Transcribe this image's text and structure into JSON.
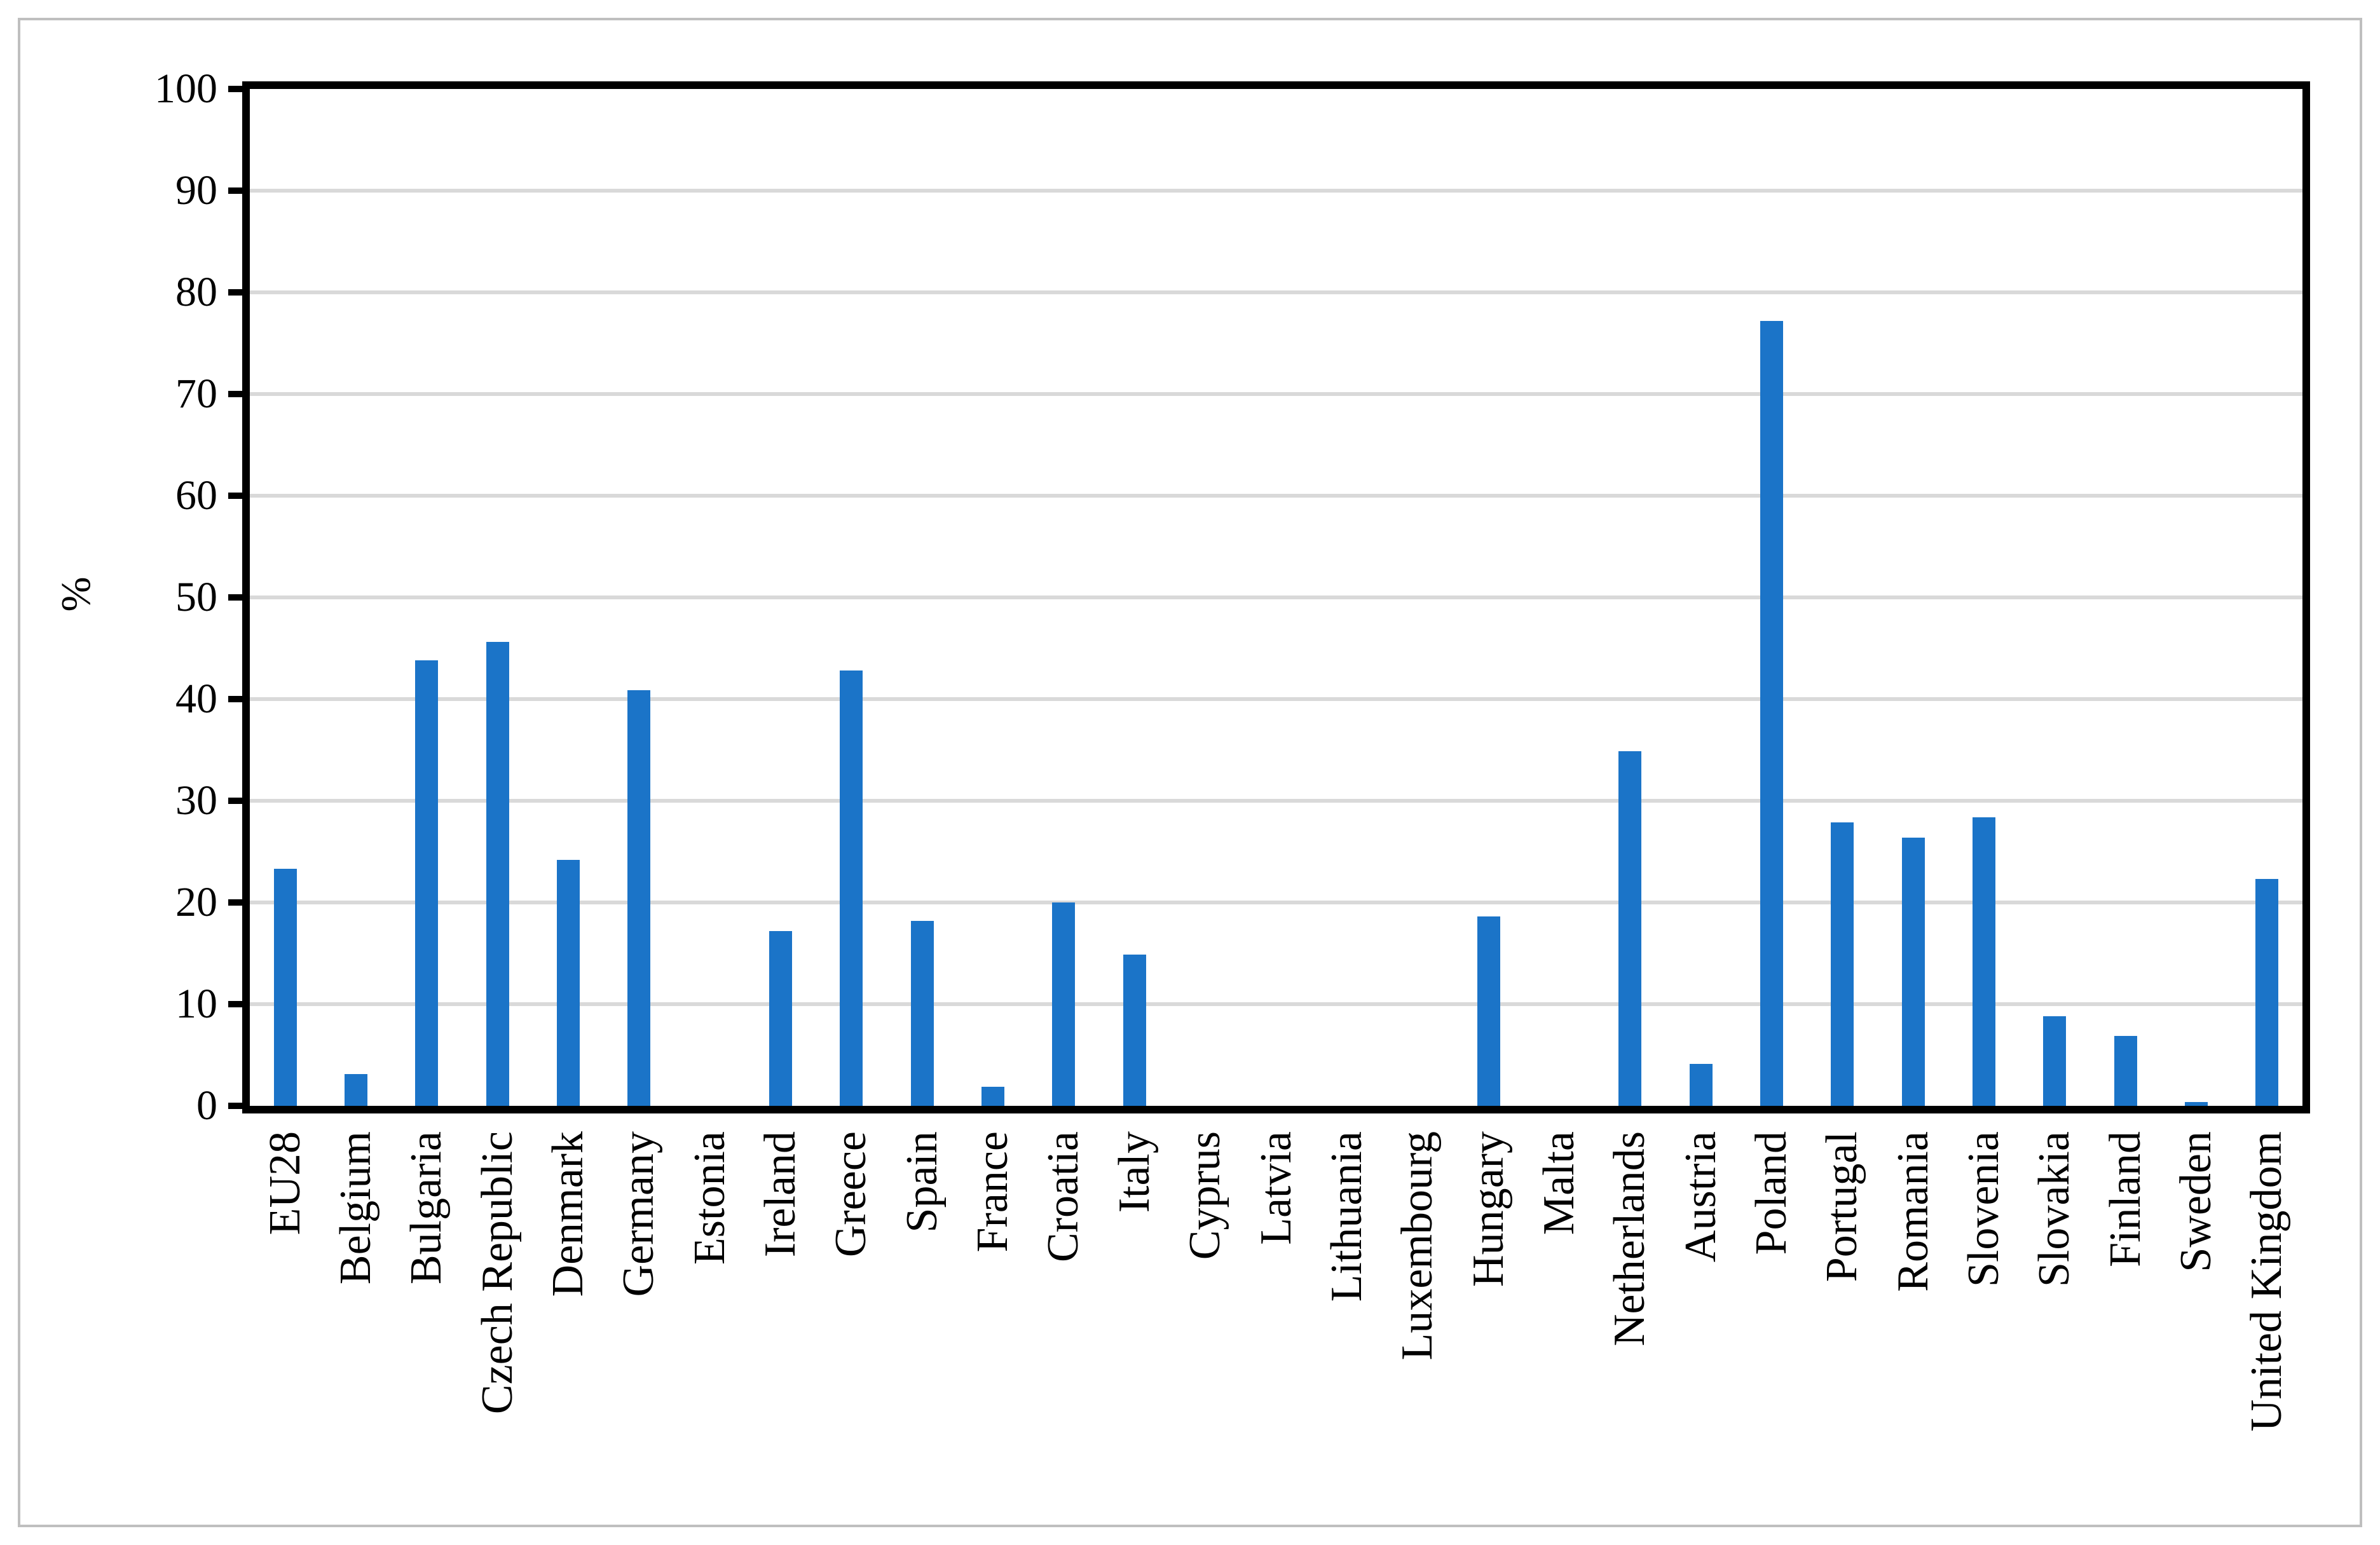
{
  "figure": {
    "background_color": "#ffffff",
    "frame_border_color": "#bfbfbf",
    "axis_color": "#000000",
    "gridline_color": "#d9d9d9",
    "text_color": "#000000"
  },
  "chart_data": {
    "type": "bar",
    "title": "",
    "xlabel": "",
    "ylabel": "%",
    "ylim": [
      0,
      100
    ],
    "ytick_step": 10,
    "ytick_labels": [
      "0",
      "10",
      "20",
      "30",
      "40",
      "50",
      "60",
      "70",
      "80",
      "90",
      "100"
    ],
    "grid": "horizontal gridlines at every 10, light gray",
    "legend": "none",
    "bar_color": "#1b74c8",
    "categories": [
      "EU28",
      "Belgium",
      "Bulgaria",
      "Czech Republic",
      "Denmark",
      "Germany",
      "Estonia",
      "Ireland",
      "Greece",
      "Spain",
      "France",
      "Croatia",
      "Italy",
      "Cyprus",
      "Latvia",
      "Lithuania",
      "Luxembourg",
      "Hungary",
      "Malta",
      "Netherlands",
      "Austria",
      "Poland",
      "Portugal",
      "Romania",
      "Slovenia",
      "Slovakia",
      "Finland",
      "Sweden",
      "United Kingdom"
    ],
    "values": [
      23.3,
      3.1,
      43.8,
      45.6,
      24.2,
      40.9,
      0,
      17.2,
      42.8,
      18.2,
      1.9,
      20.0,
      14.9,
      0,
      0,
      0,
      0,
      18.6,
      0,
      34.9,
      4.1,
      77.2,
      27.9,
      26.4,
      28.4,
      8.8,
      6.9,
      0.4,
      22.3
    ]
  }
}
